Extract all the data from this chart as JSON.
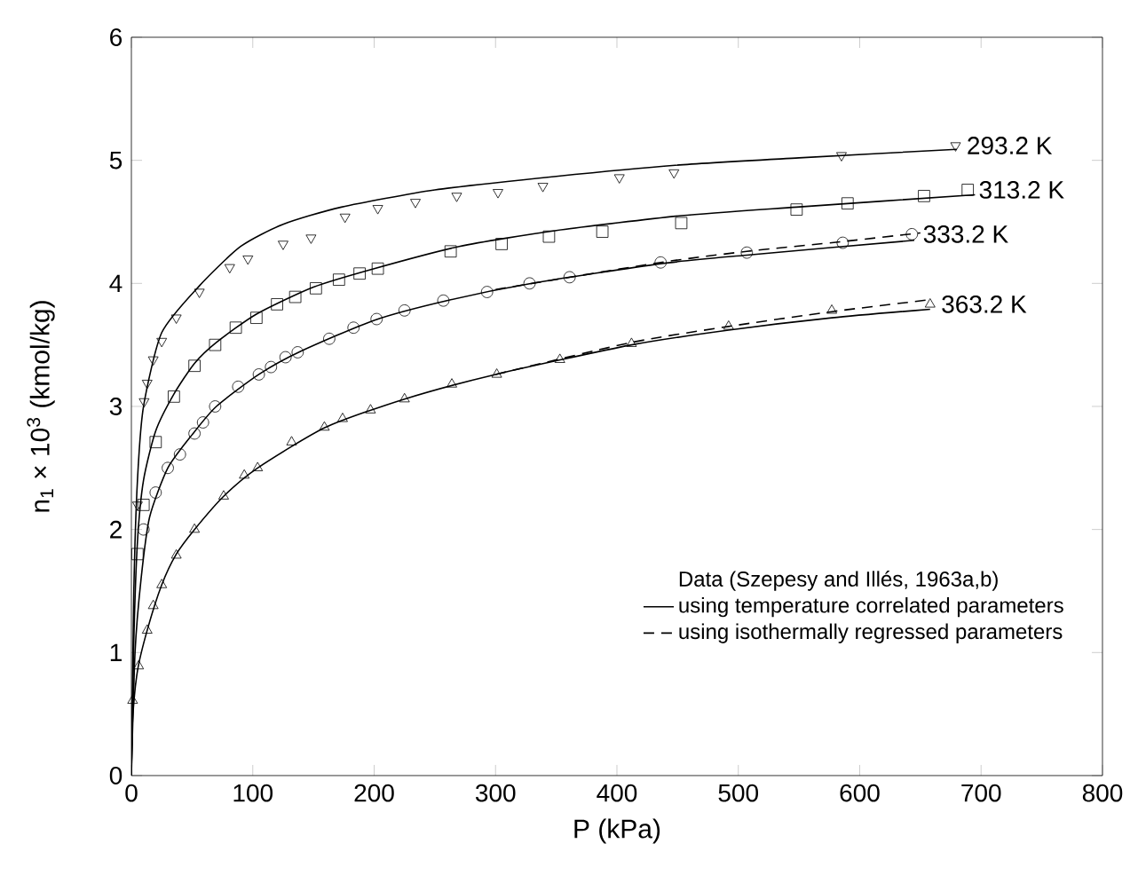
{
  "chart_data": {
    "type": "scatter",
    "xlabel": "P (kPa)",
    "ylabel": "n$_{1}$ × 10$^{3}$ (kmol/kg)",
    "legend_title": "Data (Szepesy and Illés, 1963a,b)",
    "legend": "bottom right",
    "xlim": [
      0,
      800
    ],
    "ylim": [
      0,
      6
    ],
    "xticks": [
      0,
      100,
      200,
      300,
      400,
      500,
      600,
      700,
      800
    ],
    "yticks": [
      0,
      1,
      2,
      3,
      4,
      5,
      6
    ],
    "series": [
      {
        "name": "293.2 K",
        "marker": "triangle down",
        "color": "#000000",
        "x": [
          5,
          10.5,
          13,
          18,
          25,
          37,
          56,
          81,
          96,
          125,
          148,
          176,
          203,
          234,
          268,
          302,
          339,
          402,
          447,
          585,
          679
        ],
        "values": [
          2.2,
          3.04,
          3.19,
          3.38,
          3.53,
          3.72,
          3.93,
          4.13,
          4.2,
          4.32,
          4.37,
          4.54,
          4.61,
          4.66,
          4.71,
          4.74,
          4.79,
          4.86,
          4.9,
          5.04,
          5.12
        ]
      },
      {
        "name": "313.2 K",
        "marker": "square",
        "color": "#000000",
        "x": [
          5,
          10,
          20,
          35,
          52,
          69,
          86,
          103,
          120,
          135,
          152,
          171,
          188,
          203,
          263,
          305,
          344,
          388,
          453,
          548,
          590,
          653,
          689
        ],
        "values": [
          1.8,
          2.2,
          2.71,
          3.08,
          3.33,
          3.5,
          3.64,
          3.72,
          3.83,
          3.89,
          3.96,
          4.03,
          4.08,
          4.12,
          4.26,
          4.32,
          4.38,
          4.42,
          4.49,
          4.6,
          4.65,
          4.71,
          4.76
        ]
      },
      {
        "name": "333.2 K",
        "marker": "circle",
        "color": "#000000",
        "x": [
          10,
          20,
          30,
          40,
          52,
          59,
          69,
          88,
          105,
          115,
          127,
          137,
          163,
          183,
          202,
          225,
          257,
          293,
          328,
          361,
          436,
          507,
          586,
          643
        ],
        "values": [
          2.0,
          2.3,
          2.5,
          2.61,
          2.78,
          2.87,
          3.0,
          3.16,
          3.26,
          3.32,
          3.4,
          3.44,
          3.55,
          3.64,
          3.71,
          3.78,
          3.86,
          3.93,
          4.0,
          4.05,
          4.17,
          4.25,
          4.33,
          4.4
        ]
      },
      {
        "name": "363.2 K",
        "marker": "triangle",
        "color": "#000000",
        "x": [
          1,
          6,
          13,
          18,
          25,
          37,
          52,
          76,
          93,
          104,
          132,
          159,
          174,
          197,
          225,
          264,
          301,
          353,
          412,
          492,
          577,
          658
        ],
        "values": [
          0.61,
          0.89,
          1.18,
          1.38,
          1.55,
          1.79,
          2.0,
          2.27,
          2.44,
          2.5,
          2.71,
          2.83,
          2.9,
          2.97,
          3.06,
          3.18,
          3.26,
          3.38,
          3.51,
          3.65,
          3.78,
          3.83
        ]
      },
      {
        "name": "using temperature correlated parameters",
        "type": "line",
        "line_style": "solid",
        "color": "#000000",
        "x": [
          0,
          2,
          5,
          10,
          25,
          56,
          90,
          125,
          173,
          250,
          350,
          448,
          550,
          680
        ],
        "values": [
          0,
          1.5,
          2.4,
          3.0,
          3.6,
          3.98,
          4.3,
          4.48,
          4.62,
          4.76,
          4.87,
          4.96,
          5.02,
          5.09
        ]
      },
      {
        "type": "line",
        "line_style": "solid",
        "color": "#000000",
        "x": [
          0,
          2,
          5,
          10,
          20,
          35,
          52,
          70,
          103,
          150,
          200,
          270,
          350,
          453,
          548,
          695
        ],
        "values": [
          0,
          1.1,
          1.9,
          2.4,
          2.8,
          3.1,
          3.35,
          3.52,
          3.75,
          3.97,
          4.12,
          4.3,
          4.43,
          4.55,
          4.62,
          4.72
        ]
      },
      {
        "type": "line",
        "line_style": "solid",
        "color": "#000000",
        "x": [
          0,
          3,
          8,
          15,
          30,
          50,
          70,
          105,
          140,
          200,
          260,
          330,
          436,
          507,
          645
        ],
        "values": [
          0,
          1.0,
          1.6,
          2.1,
          2.5,
          2.77,
          3.0,
          3.26,
          3.45,
          3.7,
          3.86,
          4.0,
          4.16,
          4.23,
          4.35
        ]
      },
      {
        "type": "line",
        "line_style": "solid",
        "color": "#000000",
        "x": [
          0,
          1,
          5,
          13,
          25,
          37,
          52,
          76,
          104,
          160,
          225,
          300,
          412,
          492,
          577,
          658
        ],
        "values": [
          0,
          0.45,
          0.85,
          1.18,
          1.55,
          1.8,
          2.0,
          2.27,
          2.5,
          2.83,
          3.06,
          3.26,
          3.5,
          3.62,
          3.72,
          3.79
        ]
      },
      {
        "name": "using isothermally regressed parameters",
        "type": "line",
        "line_style": "dashed",
        "color": "#000000",
        "x": [
          300,
          436,
          507,
          586,
          650
        ],
        "values": [
          3.95,
          4.17,
          4.26,
          4.34,
          4.41
        ]
      },
      {
        "type": "line",
        "line_style": "dashed",
        "color": "#000000",
        "x": [
          300,
          412,
          492,
          577,
          660
        ],
        "values": [
          3.26,
          3.52,
          3.65,
          3.77,
          3.87
        ]
      }
    ]
  }
}
